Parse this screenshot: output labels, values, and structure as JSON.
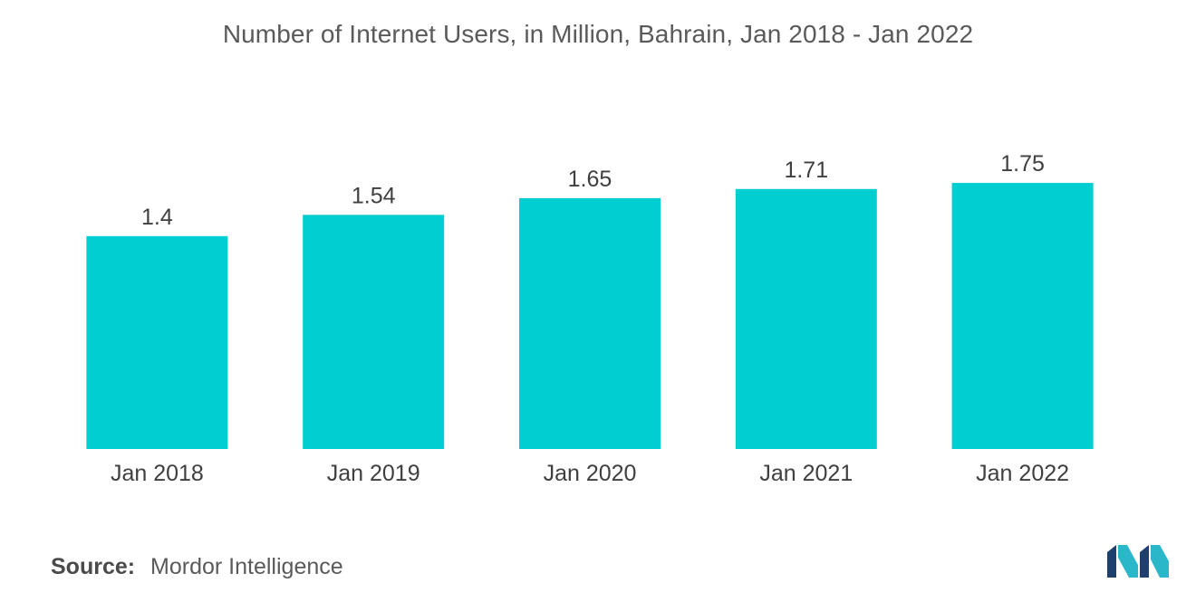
{
  "chart_data": {
    "type": "bar",
    "title": "Number of Internet Users, in Million, Bahrain, Jan 2018 - Jan 2022",
    "categories": [
      "Jan 2018",
      "Jan 2019",
      "Jan 2020",
      "Jan 2021",
      "Jan 2022"
    ],
    "values": [
      1.4,
      1.54,
      1.65,
      1.71,
      1.75
    ],
    "value_labels": [
      "1.4",
      "1.54",
      "1.65",
      "1.71",
      "1.75"
    ],
    "xlabel": "",
    "ylabel": "",
    "ylim": [
      0,
      2.06
    ],
    "grid": false,
    "legend": "none",
    "bar_color": "#00CED1"
  },
  "source": {
    "label": "Source:",
    "text": "Mordor Intelligence"
  },
  "logo": {
    "icon": "mordor-intelligence-logo-icon",
    "colors": [
      "#1f3f6e",
      "#2ab7c9"
    ]
  }
}
